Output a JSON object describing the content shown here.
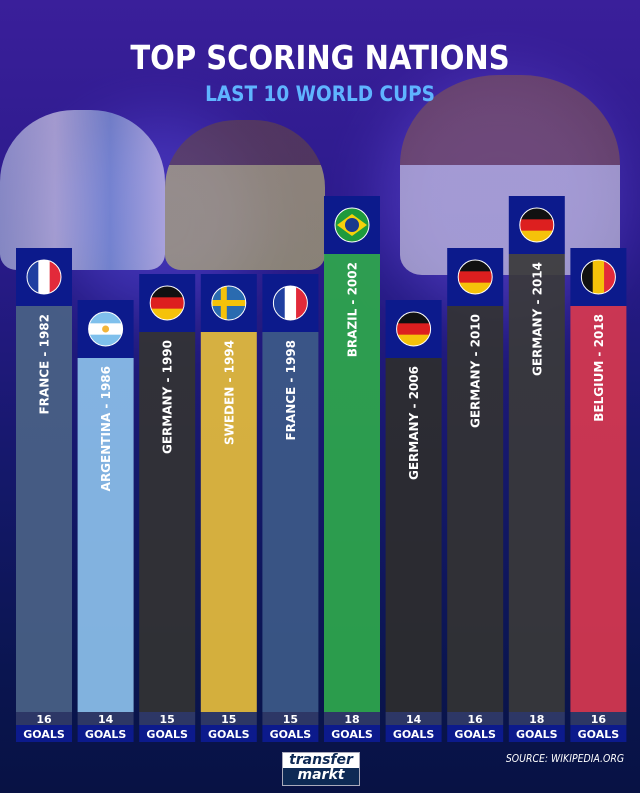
{
  "title": "TOP SCORING NATIONS",
  "subtitle": "LAST 10 WORLD CUPS",
  "source": "SOURCE: WIKIPEDIA.ORG",
  "logo": {
    "line1": "transfer",
    "line2": "markt"
  },
  "colors": {
    "flag_box": "#0c1a8c",
    "goals_strip": "#0c1a8c",
    "title": "#ffffff",
    "subtitle": "#5fb4ff"
  },
  "chart_data": {
    "type": "bar",
    "title": "TOP SCORING NATIONS",
    "subtitle": "LAST 10 WORLD CUPS",
    "unit_label": "GOALS",
    "categories": [
      "FRANCE - 1982",
      "ARGENTINA - 1986",
      "GERMANY - 1990",
      "SWEDEN - 1994",
      "FRANCE - 1998",
      "BRAZIL - 2002",
      "GERMANY - 2006",
      "GERMANY - 2010",
      "GERMANY - 2014",
      "BELGIUM - 2018"
    ],
    "values": [
      16,
      14,
      15,
      15,
      15,
      18,
      14,
      16,
      18,
      16
    ],
    "flags": [
      "france",
      "argentina",
      "germany",
      "sweden",
      "france",
      "brazil",
      "germany",
      "germany",
      "germany",
      "belgium"
    ],
    "bar_colors": [
      "#4a6285",
      "#8cc0ea",
      "#333333",
      "#e6bd3c",
      "#3d5a88",
      "#2fa84c",
      "#2e2e2e",
      "#333333",
      "#3a3a3a",
      "#d8384f"
    ]
  }
}
